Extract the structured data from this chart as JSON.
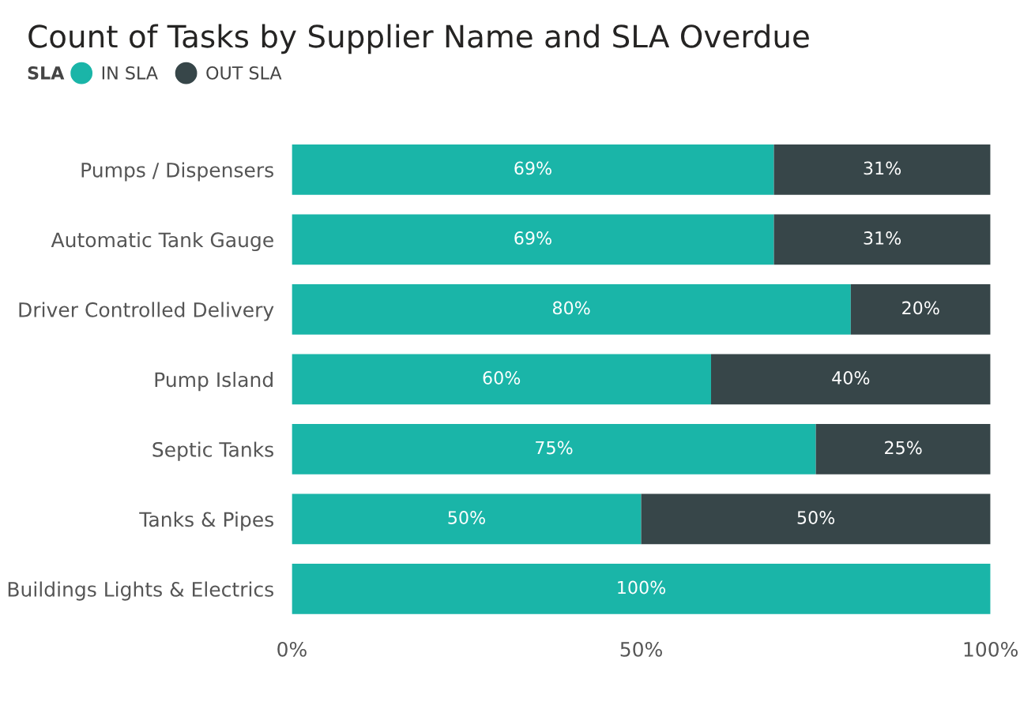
{
  "chart_data": {
    "type": "bar",
    "orientation": "horizontal",
    "stacked": true,
    "title": "Count of Tasks by Supplier Name and SLA Overdue",
    "legend_title": "SLA",
    "legend": "top left",
    "grid": false,
    "categories": [
      "Pumps / Dispensers",
      "Automatic Tank Gauge",
      "Driver Controlled Delivery",
      "Pump Island",
      "Septic Tanks",
      "Tanks & Pipes",
      "Buildings Lights & Electrics"
    ],
    "series": [
      {
        "name": "IN SLA",
        "color": "#1ab5a8",
        "values": [
          69,
          69,
          80,
          60,
          75,
          50,
          100
        ],
        "value_labels": [
          "69%",
          "69%",
          "80%",
          "60%",
          "75%",
          "50%",
          "100%"
        ]
      },
      {
        "name": "OUT SLA",
        "color": "#374649",
        "values": [
          31,
          31,
          20,
          40,
          25,
          50,
          0
        ],
        "value_labels": [
          "31%",
          "31%",
          "20%",
          "40%",
          "25%",
          "50%",
          null
        ]
      }
    ],
    "xlim": [
      0,
      100
    ],
    "xticks": [
      {
        "value": 0,
        "label": "0%"
      },
      {
        "value": 50,
        "label": "50%"
      },
      {
        "value": 100,
        "label": "100%"
      }
    ]
  }
}
